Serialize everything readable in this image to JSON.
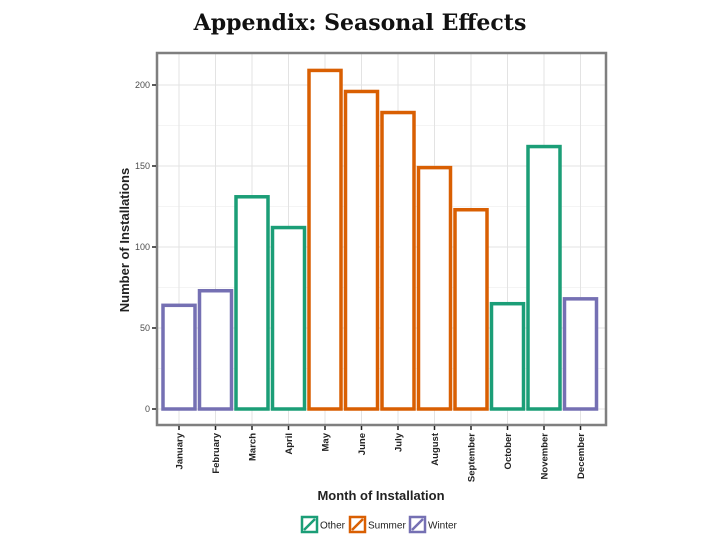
{
  "page_title": "Appendix: Seasonal Effects",
  "chart_data": {
    "type": "bar",
    "title": "Appendix: Seasonal Effects",
    "xlabel": "Month of Installation",
    "ylabel": "Number of Installations",
    "categories": [
      "January",
      "February",
      "March",
      "April",
      "May",
      "June",
      "July",
      "August",
      "September",
      "October",
      "November",
      "December"
    ],
    "values": [
      64,
      73,
      131,
      112,
      209,
      196,
      183,
      149,
      123,
      65,
      162,
      68
    ],
    "season": [
      "Winter",
      "Winter",
      "Other",
      "Other",
      "Summer",
      "Summer",
      "Summer",
      "Summer",
      "Summer",
      "Other",
      "Other",
      "Winter"
    ],
    "ylim": [
      0,
      220
    ],
    "yticks": [
      0,
      50,
      100,
      150,
      200
    ],
    "grid": true,
    "legend": {
      "placement": "bottom",
      "entries": [
        {
          "name": "Other",
          "color": "#1b9e77"
        },
        {
          "name": "Summer",
          "color": "#d95f02"
        },
        {
          "name": "Winter",
          "color": "#7570b3"
        }
      ]
    }
  }
}
